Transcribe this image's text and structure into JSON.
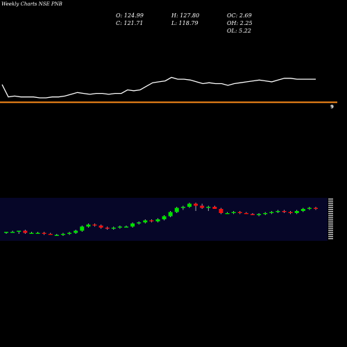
{
  "header": {
    "title": "Weekly Charts NSE PNB",
    "o": "O: 124.99",
    "c": "C: 121.71",
    "h": "H: 127.80",
    "l": "L: 118.79",
    "oc": "OC: 2.69",
    "oh": "OH: 2.25",
    "ol": "OL: 5.22"
  },
  "colors": {
    "up": "#00e000",
    "down": "#ee1111",
    "line": "#ffffff",
    "hline": "#ff8c1a",
    "grid": "#1a1aa0"
  },
  "chart_data": [
    {
      "type": "line",
      "x": [
        0,
        1,
        2,
        3,
        4,
        5,
        6,
        7,
        8,
        9,
        10,
        11,
        12,
        13,
        14,
        15,
        16,
        17,
        18,
        19,
        20,
        21,
        22,
        23,
        24,
        25,
        26,
        27,
        28,
        29,
        30,
        31,
        32,
        33,
        34,
        35,
        36,
        37,
        38,
        39,
        40,
        41,
        42,
        43,
        44,
        45,
        46,
        47,
        48,
        49,
        50
      ],
      "values": [
        62,
        48,
        49,
        48,
        48,
        48,
        47,
        47,
        48,
        48,
        49,
        51,
        53,
        52,
        51,
        52,
        52,
        51,
        52,
        52,
        56,
        55,
        56,
        60,
        64,
        65,
        66,
        70,
        68,
        68,
        67,
        65,
        63,
        64,
        63,
        63,
        61,
        63,
        64,
        65,
        66,
        67,
        66,
        65,
        67,
        69,
        69,
        68,
        68,
        68,
        68
      ],
      "reference_line": 42,
      "marker_label": "9"
    },
    {
      "type": "candlestick",
      "candles": [
        [
          67,
          68,
          66,
          68
        ],
        [
          68,
          69,
          67,
          68
        ],
        [
          68,
          69,
          66,
          69
        ],
        [
          69,
          70,
          66,
          67
        ],
        [
          67,
          68,
          66,
          67
        ],
        [
          67,
          68,
          66,
          67
        ],
        [
          67,
          68,
          65,
          66
        ],
        [
          66,
          67,
          65,
          65
        ],
        [
          65,
          66,
          64,
          65
        ],
        [
          65,
          67,
          64,
          66
        ],
        [
          66,
          68,
          65,
          67
        ],
        [
          67,
          70,
          66,
          69
        ],
        [
          69,
          74,
          68,
          73
        ],
        [
          73,
          76,
          72,
          75
        ],
        [
          75,
          76,
          73,
          74
        ],
        [
          74,
          75,
          71,
          72
        ],
        [
          72,
          73,
          70,
          71
        ],
        [
          71,
          73,
          70,
          72
        ],
        [
          72,
          74,
          71,
          73
        ],
        [
          73,
          74,
          72,
          73
        ],
        [
          73,
          77,
          72,
          76
        ],
        [
          76,
          78,
          75,
          77
        ],
        [
          77,
          80,
          76,
          79
        ],
        [
          79,
          80,
          77,
          78
        ],
        [
          78,
          81,
          77,
          80
        ],
        [
          80,
          84,
          79,
          83
        ],
        [
          83,
          88,
          82,
          87
        ],
        [
          87,
          92,
          86,
          91
        ],
        [
          91,
          93,
          89,
          92
        ],
        [
          92,
          96,
          91,
          95
        ],
        [
          95,
          96,
          88,
          93
        ],
        [
          93,
          95,
          90,
          91
        ],
        [
          91,
          93,
          88,
          92
        ],
        [
          92,
          93,
          90,
          90
        ],
        [
          90,
          91,
          85,
          86
        ],
        [
          86,
          87,
          85,
          86
        ],
        [
          86,
          88,
          85,
          87
        ],
        [
          87,
          88,
          85,
          86
        ],
        [
          86,
          87,
          85,
          85
        ],
        [
          85,
          86,
          84,
          84
        ],
        [
          84,
          86,
          83,
          85
        ],
        [
          85,
          87,
          84,
          86
        ],
        [
          86,
          88,
          85,
          87
        ],
        [
          87,
          89,
          86,
          88
        ],
        [
          88,
          89,
          86,
          87
        ],
        [
          87,
          88,
          85,
          86
        ],
        [
          86,
          89,
          85,
          88
        ],
        [
          88,
          91,
          87,
          90
        ],
        [
          90,
          92,
          89,
          91
        ],
        [
          91,
          92,
          89,
          90
        ]
      ],
      "ylim": [
        60,
        100
      ]
    }
  ]
}
